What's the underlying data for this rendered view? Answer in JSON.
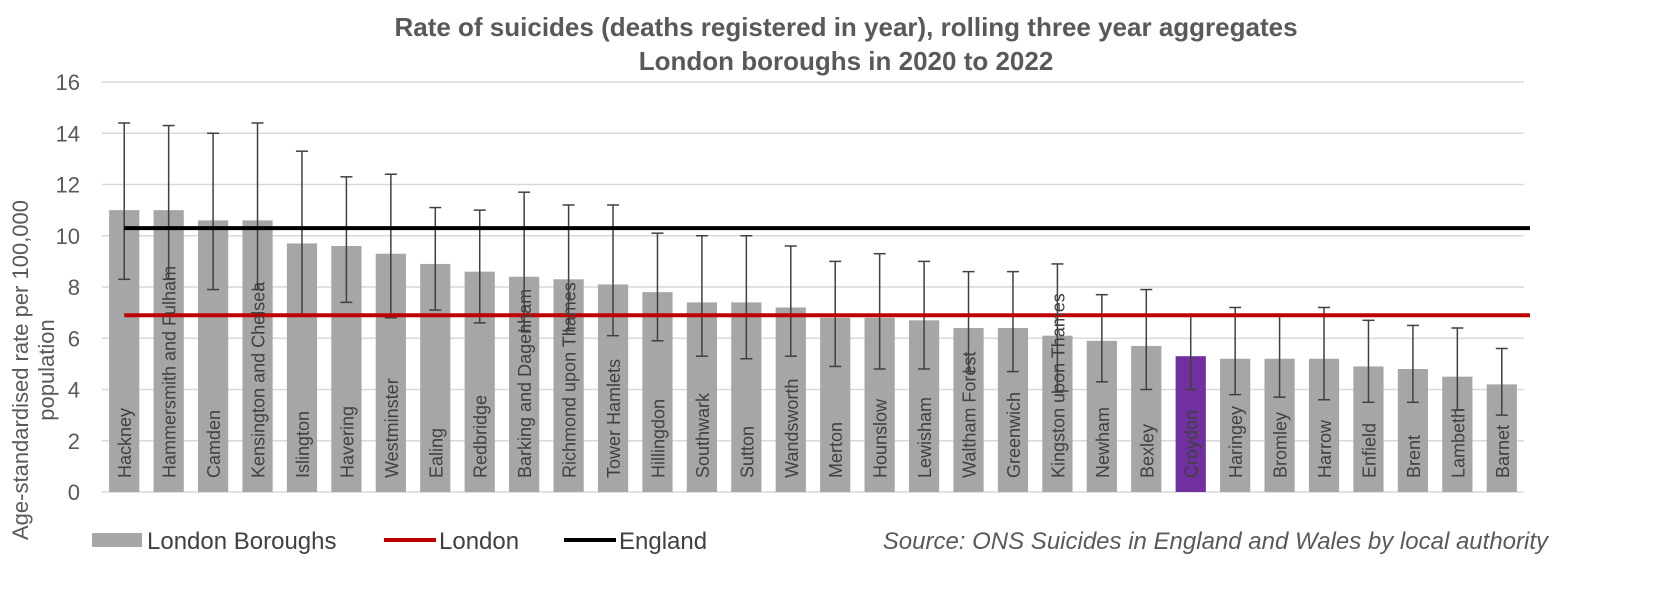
{
  "chart_data": {
    "type": "bar",
    "title": [
      "Rate of suicides (deaths registered in year), rolling three year aggregates",
      "London boroughs in 2020 to 2022"
    ],
    "ylabel": [
      "Age-standardised rate per 100,000",
      "population"
    ],
    "xlabel": "",
    "ylim": [
      0,
      16
    ],
    "yticks": [
      0,
      2,
      4,
      6,
      8,
      10,
      12,
      14,
      16
    ],
    "grid": true,
    "legend_position": "bottom-left",
    "source": "Source: ONS Suicides in England and Wales by local authority",
    "categories": [
      "Hackney",
      "Hammersmith and Fulham",
      "Camden",
      "Kensington and Chelsea",
      "Islington",
      "Havering",
      "Westminster",
      "Ealing",
      "Redbridge",
      "Barking and Dagenham",
      "Richmond upon Thames",
      "Tower Hamlets",
      "Hillingdon",
      "Southwark",
      "Sutton",
      "Wandsworth",
      "Merton",
      "Hounslow",
      "Lewisham",
      "Waltham Forest",
      "Greenwich",
      "Kingston upon Thames",
      "Newham",
      "Bexley",
      "Croydon",
      "Haringey",
      "Bromley",
      "Harrow",
      "Enfield",
      "Brent",
      "Lambeth",
      "Barnet"
    ],
    "series": [
      {
        "name": "London Boroughs",
        "values": [
          11.0,
          11.0,
          10.6,
          10.6,
          9.7,
          9.6,
          9.3,
          8.9,
          8.6,
          8.4,
          8.3,
          8.1,
          7.8,
          7.4,
          7.4,
          7.2,
          6.8,
          6.8,
          6.7,
          6.4,
          6.4,
          6.1,
          5.9,
          5.7,
          5.3,
          5.2,
          5.2,
          5.2,
          4.9,
          4.8,
          4.5,
          4.2
        ],
        "lower": [
          8.3,
          8.3,
          7.9,
          7.9,
          6.9,
          7.4,
          6.8,
          7.1,
          6.6,
          6.3,
          6.3,
          6.1,
          5.9,
          5.3,
          5.2,
          5.3,
          4.9,
          4.8,
          4.8,
          4.7,
          4.7,
          3.9,
          4.3,
          4.0,
          4.0,
          3.8,
          3.7,
          3.6,
          3.5,
          3.5,
          3.2,
          3.0
        ],
        "upper": [
          14.4,
          14.3,
          14.0,
          14.4,
          13.3,
          12.3,
          12.4,
          11.1,
          11.0,
          11.7,
          11.2,
          11.2,
          10.1,
          10.0,
          10.0,
          9.6,
          9.0,
          9.3,
          9.0,
          8.6,
          8.6,
          8.9,
          7.7,
          7.9,
          6.9,
          7.2,
          6.9,
          7.2,
          6.7,
          6.5,
          6.4,
          5.6
        ]
      },
      {
        "name": "London",
        "type": "line",
        "value": 6.9
      },
      {
        "name": "England",
        "type": "line",
        "value": 10.3
      }
    ],
    "highlight": "Croydon",
    "colors": {
      "bar": "#a6a6a6",
      "highlight": "#7030a0",
      "london": "#c00000",
      "england": "#000000",
      "grid": "#d9d9d9",
      "error_bar": "#404040"
    }
  }
}
